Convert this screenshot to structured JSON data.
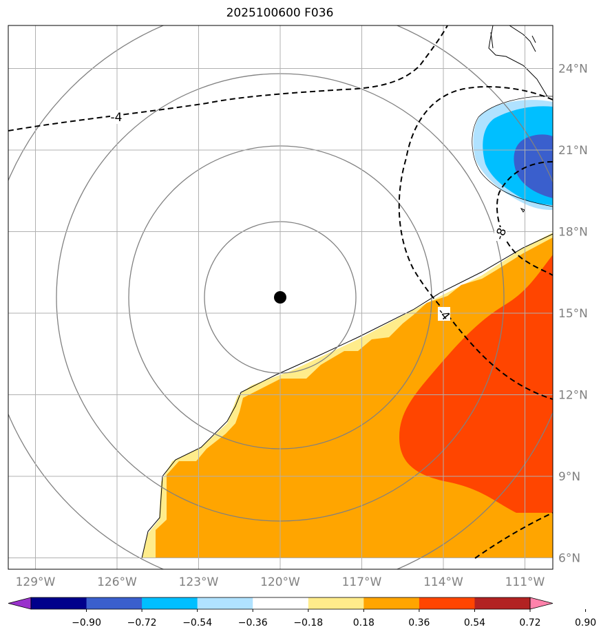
{
  "title": "2025100600 F036",
  "map": {
    "lon_ticks": [
      {
        "value": -129,
        "label": "129°W"
      },
      {
        "value": -126,
        "label": "126°W"
      },
      {
        "value": -123,
        "label": "123°W"
      },
      {
        "value": -120,
        "label": "120°W"
      },
      {
        "value": -117,
        "label": "117°W"
      },
      {
        "value": -114,
        "label": "114°W"
      },
      {
        "value": -111,
        "label": "111°W"
      }
    ],
    "lat_ticks": [
      {
        "value": 24,
        "label": "24°N"
      },
      {
        "value": 21,
        "label": "21°N"
      },
      {
        "value": 18,
        "label": "18°N"
      },
      {
        "value": 15,
        "label": "15°N"
      },
      {
        "value": 12,
        "label": "12°N"
      },
      {
        "value": 9,
        "label": "9°N"
      },
      {
        "value": 6,
        "label": "6°N"
      }
    ],
    "storm_center": {
      "lon": -120.0,
      "lat": 15.6
    },
    "contour_labels": [
      "-4",
      "-4",
      "-8"
    ]
  },
  "colorbar": {
    "ticks": [
      "−0.90",
      "−0.72",
      "−0.54",
      "−0.36",
      "−0.18",
      "0.18",
      "0.36",
      "0.54",
      "0.72",
      "0.90"
    ],
    "colors": [
      "#9932cc",
      "#00008b",
      "#3a5fcd",
      "#00bfff",
      "#b0e2ff",
      "#ffffff",
      "#ffec8b",
      "#ffa500",
      "#ff4500",
      "#b22222",
      "#ff82ab"
    ]
  }
}
